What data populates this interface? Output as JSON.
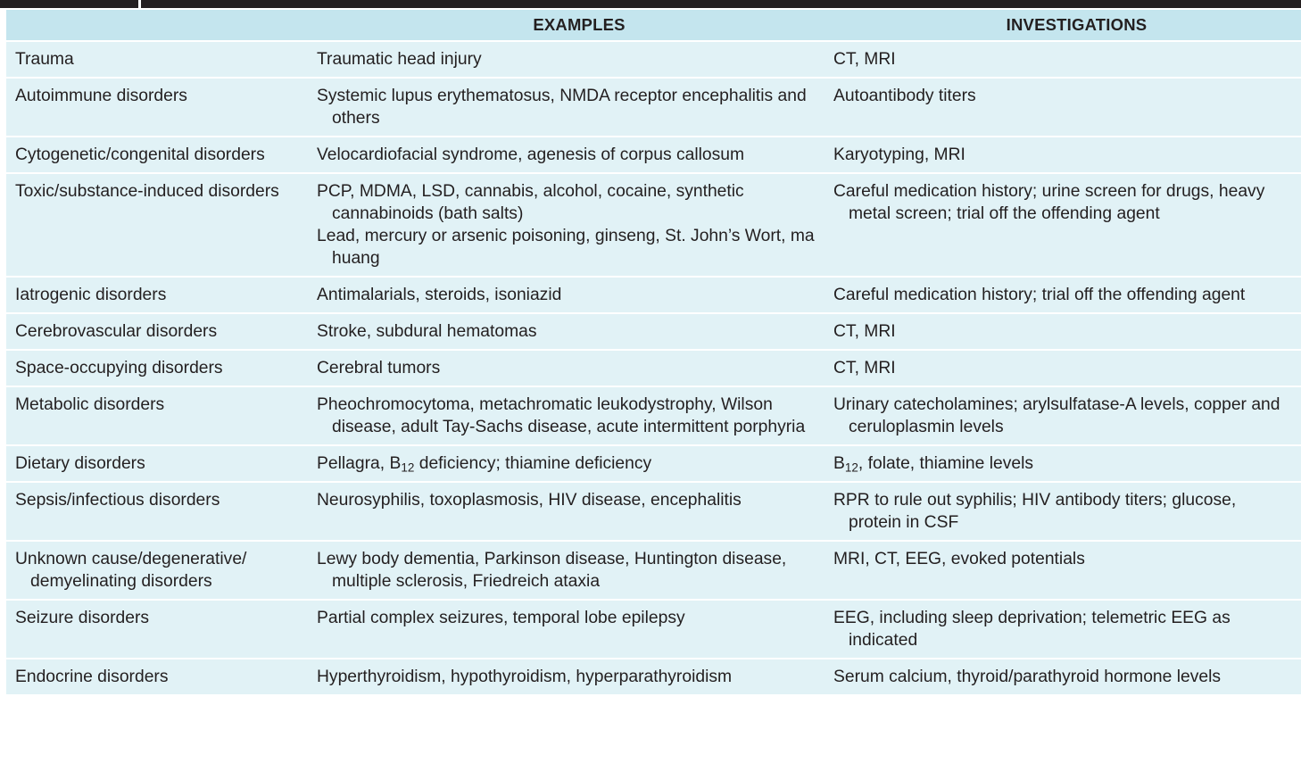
{
  "table": {
    "headers": [
      "",
      "EXAMPLES",
      "INVESTIGATIONS"
    ],
    "rows": [
      {
        "cause": "Trauma",
        "examples": [
          "Traumatic head injury"
        ],
        "investigations": "CT, MRI"
      },
      {
        "cause": "Autoimmune disorders",
        "examples": [
          "Systemic lupus erythematosus, NMDA receptor encephalitis and others"
        ],
        "investigations": "Autoantibody titers"
      },
      {
        "cause": "Cytogenetic/congenital disorders",
        "examples": [
          "Velocardiofacial syndrome, agenesis of corpus callosum"
        ],
        "investigations": "Karyotyping, MRI"
      },
      {
        "cause": "Toxic/substance-induced disorders",
        "examples": [
          "PCP, MDMA, LSD, cannabis, alcohol, cocaine, synthetic cannabinoids (bath salts)",
          "Lead, mercury or arsenic poisoning, ginseng, St. John’s Wort, ma huang"
        ],
        "investigations": "Careful medication history; urine screen for drugs, heavy metal screen; trial off the offending agent"
      },
      {
        "cause": "Iatrogenic disorders",
        "examples": [
          "Antimalarials, steroids, isoniazid"
        ],
        "investigations": "Careful medication history; trial off the offending agent"
      },
      {
        "cause": "Cerebrovascular disorders",
        "examples": [
          "Stroke, subdural hematomas"
        ],
        "investigations": "CT, MRI"
      },
      {
        "cause": "Space-occupying disorders",
        "examples": [
          "Cerebral tumors"
        ],
        "investigations": "CT, MRI"
      },
      {
        "cause": "Metabolic disorders",
        "examples": [
          "Pheochromocytoma, metachromatic leukodystrophy, Wilson disease, adult Tay-Sachs disease, acute intermittent porphyria"
        ],
        "investigations": "Urinary catecholamines; arylsulfatase-A levels, copper and ceruloplasmin levels"
      },
      {
        "cause": "Dietary disorders",
        "examples": [
          "Pellagra, B12 deficiency; thiamine deficiency"
        ],
        "investigations": "B12, folate, thiamine levels"
      },
      {
        "cause": "Sepsis/infectious disorders",
        "examples": [
          "Neurosyphilis, toxoplasmosis, HIV disease, encephalitis"
        ],
        "investigations": "RPR to rule out syphilis; HIV antibody titers; glucose, protein in CSF"
      },
      {
        "cause": "Unknown cause/degenerative/ demyelinating disorders",
        "examples": [
          "Lewy body dementia, Parkinson disease, Huntington disease, multiple sclerosis, Friedreich ataxia"
        ],
        "investigations": "MRI, CT, EEG, evoked potentials"
      },
      {
        "cause": "Seizure disorders",
        "examples": [
          "Partial complex seizures, temporal lobe epilepsy"
        ],
        "investigations": "EEG, including sleep deprivation; telemetric EEG as indicated"
      },
      {
        "cause": "Endocrine disorders",
        "examples": [
          "Hyperthyroidism, hypothyroidism, hyperparathyroidism"
        ],
        "investigations": "Serum calcium, thyroid/parathyroid hormone levels"
      }
    ]
  }
}
